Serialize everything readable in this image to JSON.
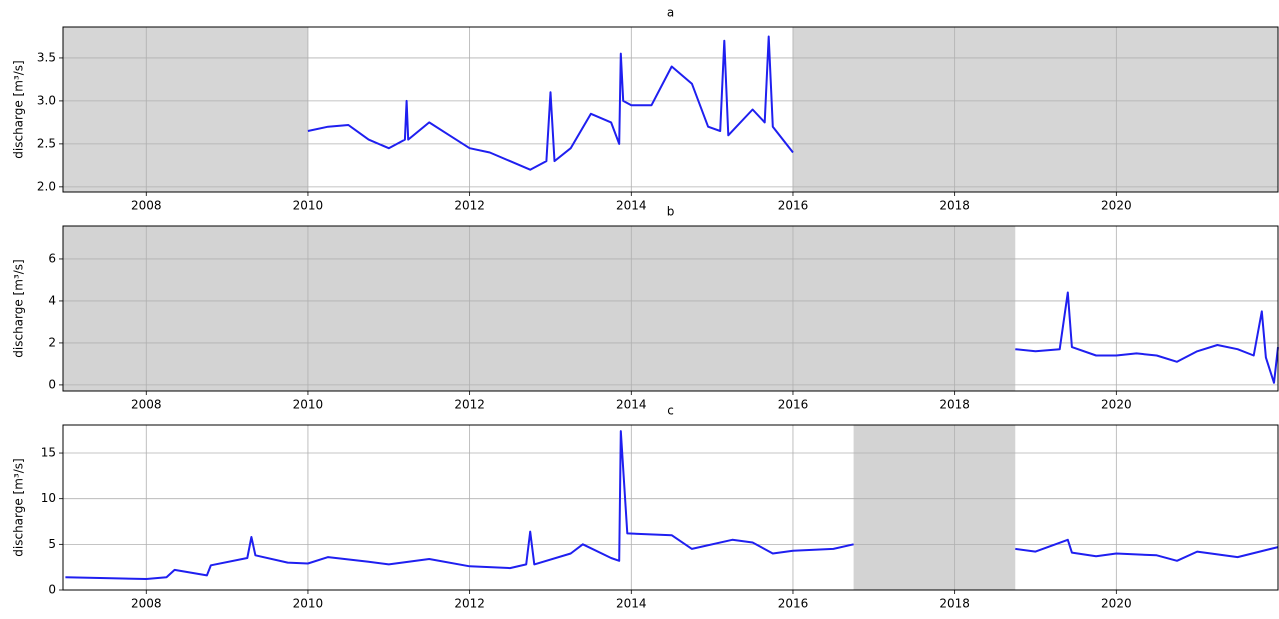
{
  "chart_data": [
    {
      "type": "line",
      "title": "a",
      "y_label": "discharge [m³/s]",
      "color": "#1f1ff0",
      "grid": true,
      "shaded_spans": [
        [
          2006.97,
          2010.0
        ],
        [
          2016.0,
          2022.0
        ]
      ],
      "shade_color": "#d6d6d6",
      "x": [
        2010.0,
        2010.25,
        2010.5,
        2010.75,
        2011.0,
        2011.2,
        2011.22,
        2011.24,
        2011.5,
        2011.75,
        2012.0,
        2012.25,
        2012.5,
        2012.75,
        2012.95,
        2013.0,
        2013.05,
        2013.25,
        2013.5,
        2013.75,
        2013.85,
        2013.87,
        2013.9,
        2014.0,
        2014.25,
        2014.5,
        2014.75,
        2014.95,
        2015.1,
        2015.15,
        2015.2,
        2015.5,
        2015.65,
        2015.7,
        2015.75,
        2016.0
      ],
      "values": [
        2.65,
        2.7,
        2.72,
        2.55,
        2.45,
        2.55,
        3.0,
        2.55,
        2.75,
        2.6,
        2.45,
        2.4,
        2.3,
        2.2,
        2.3,
        3.1,
        2.3,
        2.45,
        2.85,
        2.75,
        2.5,
        3.55,
        3.0,
        2.95,
        2.95,
        3.4,
        3.2,
        2.7,
        2.65,
        3.7,
        2.6,
        2.9,
        2.75,
        3.75,
        2.7,
        2.4
      ],
      "xlim": [
        2006.97,
        2022.0
      ],
      "xticks": [
        2008,
        2010,
        2012,
        2014,
        2016,
        2018,
        2020
      ],
      "ylim": [
        1.94,
        3.86
      ],
      "yticks": [
        {
          "value": 2.0,
          "label": "2.0"
        },
        2.5,
        {
          "value": 3.0,
          "label": "3.0"
        },
        3.5
      ]
    },
    {
      "type": "line",
      "title": "b",
      "y_label": "discharge [m³/s]",
      "color": "#1f1ff0",
      "grid": true,
      "shaded_spans": [
        [
          2006.97,
          2018.75
        ]
      ],
      "shade_color": "#d3d3d3",
      "x": [
        2018.75,
        2019.0,
        2019.3,
        2019.4,
        2019.45,
        2019.75,
        2020.0,
        2020.25,
        2020.5,
        2020.75,
        2021.0,
        2021.25,
        2021.5,
        2021.7,
        2021.8,
        2021.85,
        2021.95,
        2022.0
      ],
      "values": [
        1.7,
        1.6,
        1.7,
        4.4,
        1.8,
        1.4,
        1.4,
        1.5,
        1.4,
        1.1,
        1.6,
        1.9,
        1.7,
        1.4,
        3.5,
        1.3,
        0.1,
        1.8
      ],
      "xlim": [
        2006.97,
        2022.0
      ],
      "xticks": [
        2008,
        2010,
        2012,
        2014,
        2016,
        2018,
        2020
      ],
      "ylim": [
        -0.29,
        7.57
      ],
      "yticks": [
        0,
        2,
        4,
        6
      ]
    },
    {
      "type": "line",
      "title": "c",
      "y_label": "discharge [m³/s]",
      "color": "#1f1ff0",
      "grid": true,
      "shaded_spans": [
        [
          2016.75,
          2018.75
        ]
      ],
      "shade_color": "#d3d3d3",
      "x": [
        2007.0,
        2007.5,
        2008.0,
        2008.25,
        2008.35,
        2008.75,
        2008.8,
        2009.25,
        2009.3,
        2009.35,
        2009.75,
        2010.0,
        2010.25,
        2010.75,
        2011.0,
        2011.5,
        2012.0,
        2012.5,
        2012.7,
        2012.75,
        2012.8,
        2013.25,
        2013.4,
        2013.75,
        2013.85,
        2013.87,
        2013.95,
        2014.5,
        2014.75,
        2015.25,
        2015.5,
        2015.75,
        2016.0,
        2016.5,
        2016.75,
        null,
        2018.75,
        2019.0,
        2019.4,
        2019.45,
        2019.75,
        2020.0,
        2020.5,
        2020.75,
        2021.0,
        2021.5,
        2022.0
      ],
      "values": [
        1.4,
        1.3,
        1.2,
        1.4,
        2.2,
        1.6,
        2.7,
        3.5,
        5.8,
        3.8,
        3.0,
        2.9,
        3.6,
        3.1,
        2.8,
        3.4,
        2.6,
        2.4,
        2.8,
        6.4,
        2.8,
        4.0,
        5.0,
        3.5,
        3.2,
        17.4,
        6.2,
        6.0,
        4.5,
        5.5,
        5.2,
        4.0,
        4.3,
        4.5,
        5.0,
        null,
        4.5,
        4.2,
        5.5,
        4.1,
        3.7,
        4.0,
        3.8,
        3.2,
        4.2,
        3.6,
        4.7
      ],
      "xlim": [
        2006.97,
        2022.0
      ],
      "xticks": [
        2008,
        2010,
        2012,
        2014,
        2016,
        2018,
        2020
      ],
      "ylim": [
        0,
        18.07
      ],
      "yticks": [
        0,
        5,
        10,
        15
      ]
    }
  ]
}
